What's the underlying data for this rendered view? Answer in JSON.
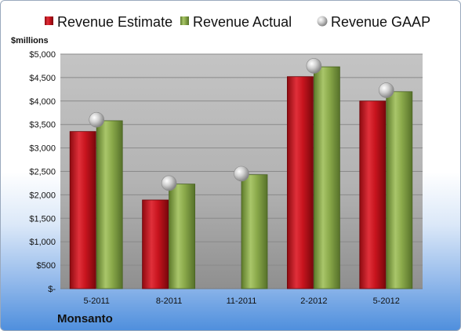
{
  "company": "Monsanto",
  "colors": {
    "estimate": "#c8141e",
    "actual": "#8aa94a",
    "gaap": "#b8b8b8"
  },
  "chart_data": {
    "type": "bar",
    "ylabel": "$millions",
    "ylim": [
      0,
      5000
    ],
    "ytick_labels": [
      "$-",
      "$500",
      "$1,000",
      "$1,500",
      "$2,000",
      "$2,500",
      "$3,000",
      "$3,500",
      "$4,000",
      "$4,500",
      "$5,000"
    ],
    "categories": [
      "5-2011",
      "8-2011",
      "11-2011",
      "2-2012",
      "5-2012"
    ],
    "series": [
      {
        "name": "Revenue Estimate",
        "kind": "bar",
        "values": [
          3350,
          1890,
          null,
          4520,
          4000
        ]
      },
      {
        "name": "Revenue Actual",
        "kind": "bar",
        "values": [
          3580,
          2230,
          2430,
          4730,
          4200
        ]
      },
      {
        "name": "Revenue GAAP",
        "kind": "marker",
        "values": [
          3600,
          2250,
          2450,
          4750,
          4230
        ]
      }
    ],
    "grid": true,
    "legend_position": "top"
  }
}
